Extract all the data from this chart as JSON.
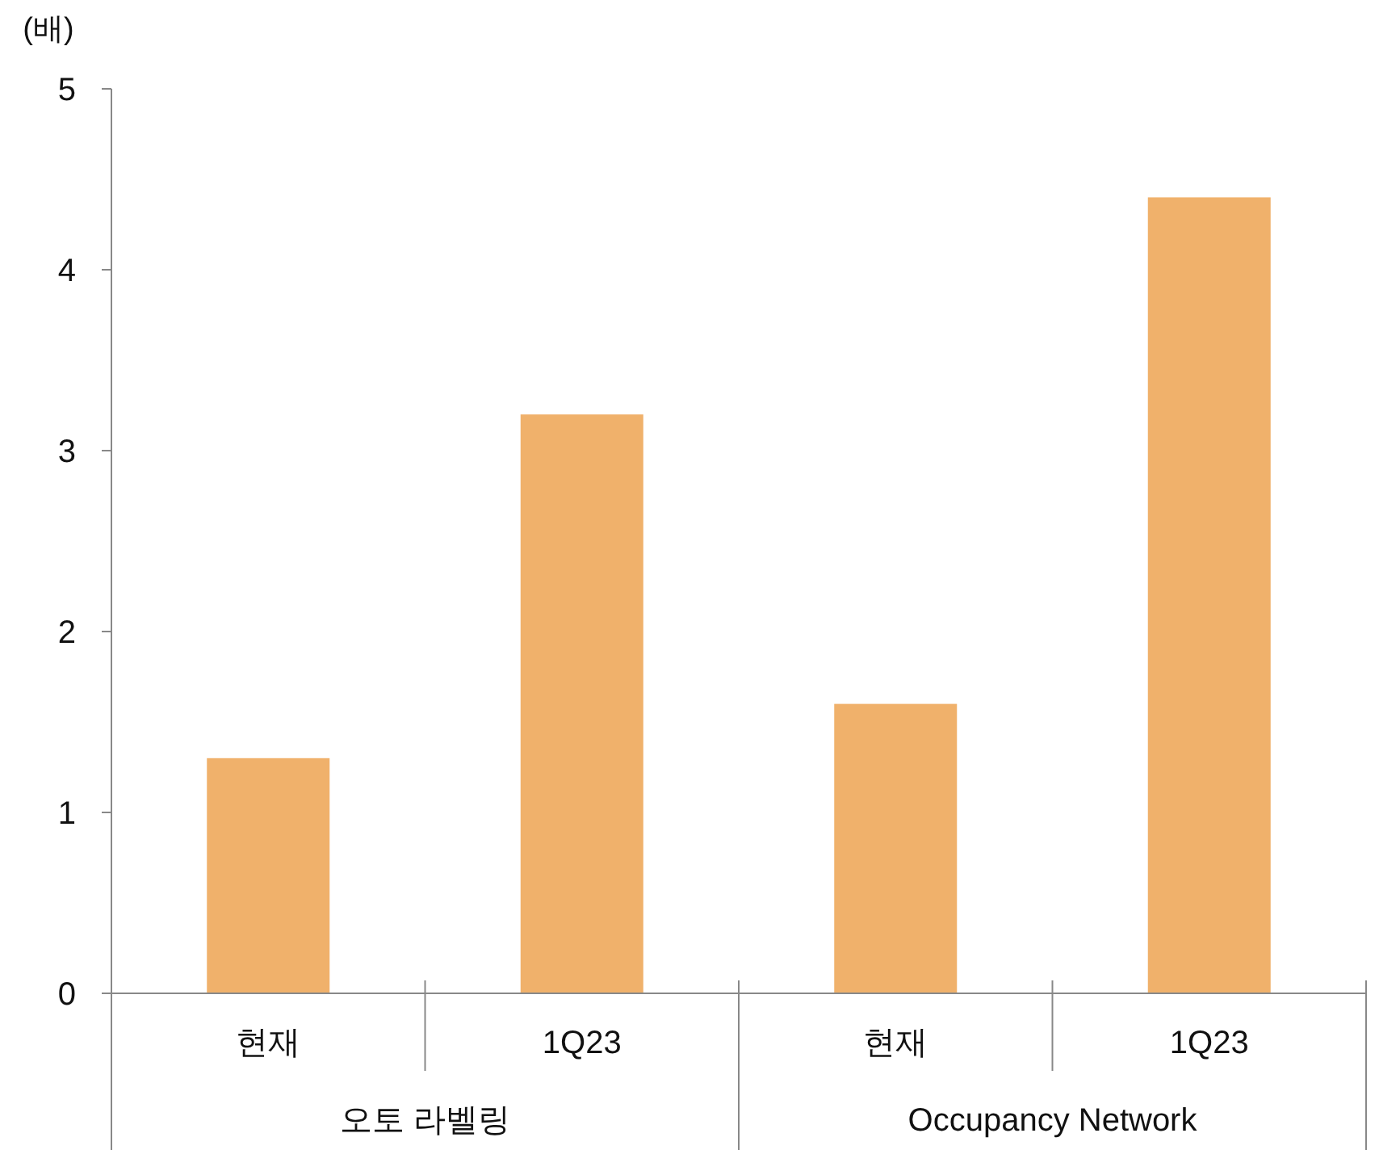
{
  "chart_data": {
    "type": "bar",
    "ylabel": "(배)",
    "categories": [
      "현재",
      "1Q23",
      "현재",
      "1Q23"
    ],
    "values": [
      1.3,
      3.2,
      1.6,
      4.4
    ],
    "color": "#f0b16b",
    "ylim": [
      0,
      5
    ],
    "yticks": [
      0,
      1,
      2,
      3,
      4,
      5
    ],
    "annotations": [
      "오토 라벨링",
      "Occupancy Network"
    ]
  }
}
